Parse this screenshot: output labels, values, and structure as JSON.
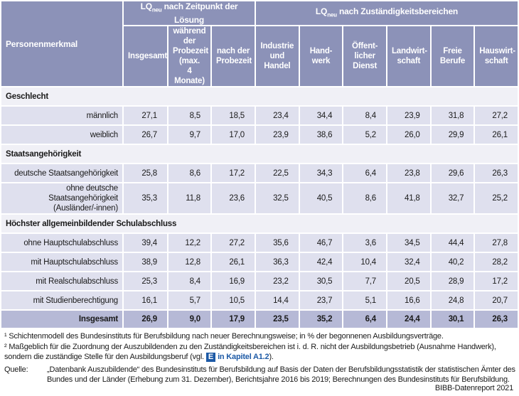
{
  "table": {
    "groups": [
      {
        "lq": "LQ",
        "sub": "neu",
        "text": "nach Zeitpunkt der Lösung"
      },
      {
        "lq": "LQ",
        "sub": "neu",
        "text": "nach Zuständigkeitsbereichen"
      }
    ],
    "columns": [
      "Personenmerkmal",
      "Insgesamt",
      "während\nder\nProbezeit\n(max.\n4 Monate)",
      "nach der\nProbezeit",
      "Industrie\nund\nHandel",
      "Hand-\nwerk",
      "Öffent-\nlicher\nDienst",
      "Landwirt-\nschaft",
      "Freie\nBerufe",
      "Hauswirt-\nschaft"
    ],
    "sections": [
      {
        "title": "Geschlecht",
        "rows": [
          {
            "label": "männlich",
            "values": [
              "27,1",
              "8,5",
              "18,5",
              "23,4",
              "34,4",
              "8,4",
              "23,9",
              "31,8",
              "27,2"
            ]
          },
          {
            "label": "weiblich",
            "values": [
              "26,7",
              "9,7",
              "17,0",
              "23,9",
              "38,6",
              "5,2",
              "26,0",
              "29,9",
              "26,1"
            ]
          }
        ]
      },
      {
        "title": "Staatsangehörigkeit",
        "rows": [
          {
            "label": "deutsche Staatsangehörigkeit",
            "values": [
              "25,8",
              "8,6",
              "17,2",
              "22,5",
              "34,3",
              "6,4",
              "23,8",
              "29,6",
              "26,3"
            ]
          },
          {
            "label": "ohne deutsche Staatsangehörigkeit\n(Ausländer/-innen)",
            "values": [
              "35,3",
              "11,8",
              "23,6",
              "32,5",
              "40,5",
              "8,6",
              "41,8",
              "32,7",
              "25,2"
            ]
          }
        ]
      },
      {
        "title": "Höchster allgemeinbildender Schulabschluss",
        "rows": [
          {
            "label": "ohne Hauptschulabschluss",
            "values": [
              "39,4",
              "12,2",
              "27,2",
              "35,6",
              "46,7",
              "3,6",
              "34,5",
              "44,4",
              "27,8"
            ]
          },
          {
            "label": "mit Hauptschulabschluss",
            "values": [
              "38,9",
              "12,8",
              "26,1",
              "36,3",
              "42,4",
              "10,4",
              "32,4",
              "40,2",
              "28,2"
            ]
          },
          {
            "label": "mit Realschulabschluss",
            "values": [
              "25,3",
              "8,4",
              "16,9",
              "23,2",
              "30,5",
              "7,7",
              "20,5",
              "28,9",
              "17,2"
            ]
          },
          {
            "label": "mit Studienberechtigung",
            "values": [
              "16,1",
              "5,7",
              "10,5",
              "14,4",
              "23,7",
              "5,1",
              "16,6",
              "24,8",
              "20,7"
            ]
          }
        ]
      }
    ],
    "total": {
      "label": "Insgesamt",
      "values": [
        "26,9",
        "9,0",
        "17,9",
        "23,5",
        "35,2",
        "6,4",
        "24,4",
        "30,1",
        "26,3"
      ]
    }
  },
  "footnotes": {
    "note1": "¹ Schichtenmodell des Bundesinstituts für Berufsbildung nach neuer Berechnungsweise; in % der begonnenen Ausbildungsverträge.",
    "note2": {
      "text": "² Maßgeblich für die Zuordnung der Auszubildenden zu den Zuständigkeitsbereichen ist i. d. R. nicht der Ausbildungsbetrieb (Ausnahme Handwerk), sondern die zuständige Stelle für den Ausbildungsberuf  (vgl.",
      "icon": "E",
      "link": "in Kapitel A1.2",
      "end": ")."
    }
  },
  "source": {
    "label": "Quelle:",
    "text": "„Datenbank Auszubildende“ des Bundesinstituts für Berufsbildung auf Basis der Daten der Berufsbildungsstatistik der statistischen Ämter des Bundes und der Länder (Erhebung zum 31. Dezember), Berichtsjahre 2016 bis 2019; Berechnungen des Bundesinstituts für Berufsbildung.",
    "credit": "BIBB-Datenreport 2021"
  }
}
